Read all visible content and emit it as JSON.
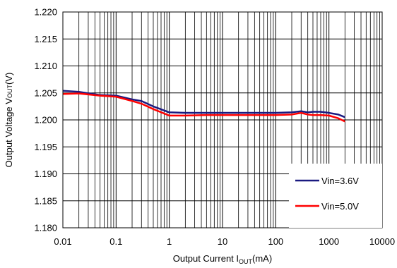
{
  "chart_data": {
    "type": "line",
    "xscale": "log",
    "xlim": [
      0.01,
      10000
    ],
    "ylim": [
      1.18,
      1.22
    ],
    "grid": true,
    "legend_placement": "bottom-right",
    "xlabel": {
      "prefix": "Output Current I",
      "sub": "OUT",
      "suffix": "(mA)"
    },
    "ylabel": {
      "prefix": "Output Voltage V",
      "sub": "OUT",
      "suffix": "(V)"
    },
    "x_ticks": [
      {
        "value": 0.01,
        "label": "0.01"
      },
      {
        "value": 0.1,
        "label": "0.1"
      },
      {
        "value": 1,
        "label": "1"
      },
      {
        "value": 10,
        "label": "10"
      },
      {
        "value": 100,
        "label": "100"
      },
      {
        "value": 1000,
        "label": "1000"
      },
      {
        "value": 10000,
        "label": "10000"
      }
    ],
    "y_ticks": [
      {
        "value": 1.22,
        "label": "1.220"
      },
      {
        "value": 1.215,
        "label": "1.215"
      },
      {
        "value": 1.21,
        "label": "1.210"
      },
      {
        "value": 1.205,
        "label": "1.205"
      },
      {
        "value": 1.2,
        "label": "1.200"
      },
      {
        "value": 1.195,
        "label": "1.195"
      },
      {
        "value": 1.19,
        "label": "1.190"
      },
      {
        "value": 1.185,
        "label": "1.185"
      },
      {
        "value": 1.18,
        "label": "1.180"
      }
    ],
    "series": [
      {
        "name": "Vin=3.6V",
        "color": "#1a1a80",
        "points": [
          [
            0.01,
            1.2054
          ],
          [
            0.02,
            1.2052
          ],
          [
            0.05,
            1.2046
          ],
          [
            0.1,
            1.2045
          ],
          [
            0.2,
            1.2038
          ],
          [
            0.3,
            1.2035
          ],
          [
            0.5,
            1.2025
          ],
          [
            1,
            1.2014
          ],
          [
            2,
            1.2013
          ],
          [
            5,
            1.2013
          ],
          [
            10,
            1.2013
          ],
          [
            20,
            1.2013
          ],
          [
            50,
            1.2013
          ],
          [
            100,
            1.2013
          ],
          [
            200,
            1.2014
          ],
          [
            300,
            1.2016
          ],
          [
            400,
            1.2014
          ],
          [
            500,
            1.2015
          ],
          [
            700,
            1.2015
          ],
          [
            1000,
            1.2013
          ],
          [
            1500,
            1.201
          ],
          [
            2000,
            1.2005
          ]
        ]
      },
      {
        "name": "Vin=5.0V",
        "color": "#ff0000",
        "points": [
          [
            0.01,
            1.2048
          ],
          [
            0.02,
            1.2049
          ],
          [
            0.05,
            1.2045
          ],
          [
            0.1,
            1.2043
          ],
          [
            0.2,
            1.2035
          ],
          [
            0.3,
            1.203
          ],
          [
            0.5,
            1.202
          ],
          [
            1,
            1.2008
          ],
          [
            2,
            1.2008
          ],
          [
            5,
            1.2009
          ],
          [
            10,
            1.2009
          ],
          [
            20,
            1.2009
          ],
          [
            50,
            1.2009
          ],
          [
            100,
            1.2009
          ],
          [
            200,
            1.201
          ],
          [
            300,
            1.2013
          ],
          [
            400,
            1.201
          ],
          [
            500,
            1.2009
          ],
          [
            700,
            1.2009
          ],
          [
            1000,
            1.2008
          ],
          [
            1500,
            1.2003
          ],
          [
            2000,
            1.1997
          ]
        ]
      }
    ]
  }
}
